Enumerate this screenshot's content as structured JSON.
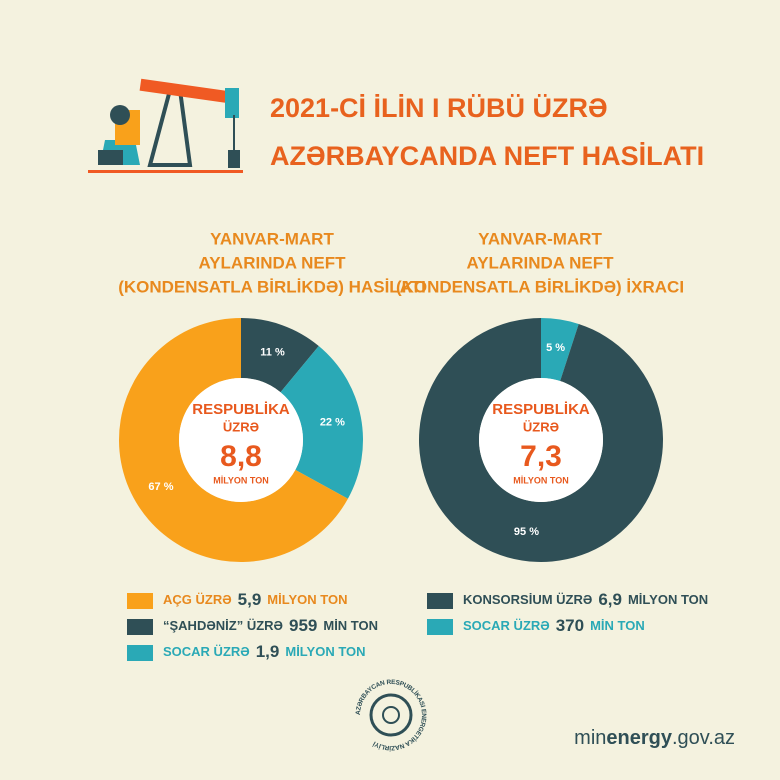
{
  "header": {
    "title": [
      "2021-Cİ İLİN I RÜBÜ ÜZRƏ",
      "AZƏRBAYCANDA NEFT HASİLATI"
    ]
  },
  "chart_data": [
    {
      "type": "pie",
      "title": [
        "YANVAR-MART",
        "AYLARINDA NEFT",
        "(KONDENSATLA BİRLİKDƏ) HASİLATI"
      ],
      "categories": [
        "“ŞAHDƏNİZ” ÜZRƏ",
        "SOCAR ÜZRƏ",
        "AÇG ÜZRƏ"
      ],
      "values": [
        11,
        22,
        67
      ],
      "value_labels": [
        "11 %",
        "22 %",
        "67 %"
      ],
      "colors": [
        "#2f4f56",
        "#2aa9b6",
        "#f9a11b"
      ],
      "amounts": [
        {
          "value": "959",
          "unit": "MİN TON"
        },
        {
          "value": "1,9",
          "unit": "MİLYON TON"
        },
        {
          "value": "5,9",
          "unit": "MİLYON TON"
        }
      ],
      "center": {
        "label": [
          "RESPUBLİKA",
          "ÜZRƏ"
        ],
        "value": "8,8",
        "unit": "MİLYON TON"
      }
    },
    {
      "type": "pie",
      "title": [
        "YANVAR-MART",
        "AYLARINDA NEFT",
        "(KONDENSATLA BİRLİKDƏ) İXRACI"
      ],
      "categories": [
        "SOCAR ÜZRƏ",
        "KONSORSİUM ÜZRƏ"
      ],
      "values": [
        5,
        95
      ],
      "value_labels": [
        "5 %",
        "95 %"
      ],
      "colors": [
        "#2aa9b6",
        "#2f4f56"
      ],
      "amounts": [
        {
          "value": "370",
          "unit": "MİN TON"
        },
        {
          "value": "6,9",
          "unit": "MİLYON TON"
        }
      ],
      "center": {
        "label": [
          "RESPUBLİKA",
          "ÜZRƏ"
        ],
        "value": "7,3",
        "unit": "MİLYON TON"
      }
    }
  ],
  "footer": {
    "logo_text": "AZƏRBAYCAN RESPUBLİKASI ENERGETİKA NAZİRLİYİ",
    "website": [
      "min",
      "energy",
      ".gov.az"
    ]
  }
}
